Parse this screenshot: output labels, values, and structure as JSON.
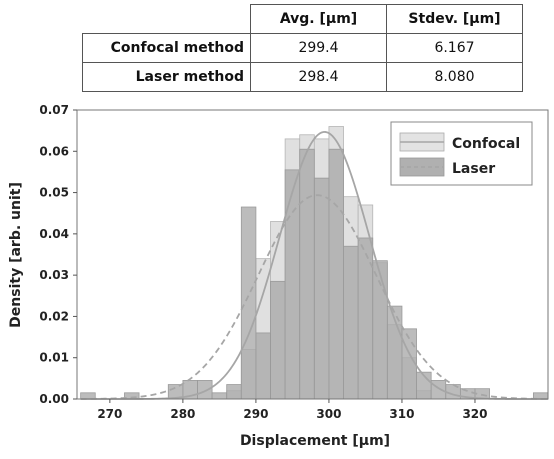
{
  "table": {
    "headers": [
      "",
      "Avg.  [μm]",
      "Stdev.  [μm]"
    ],
    "rows": [
      {
        "label": "Confocal method",
        "avg": "299.4",
        "stdev": "6.167"
      },
      {
        "label": "Laser method",
        "avg": "298.4",
        "stdev": "8.080"
      }
    ]
  },
  "chart_data": {
    "type": "histogram",
    "xlabel": "Displacement [μm]",
    "ylabel": "Density [arb. unit]",
    "xlim": [
      265.5,
      330
    ],
    "ylim": [
      0,
      0.07
    ],
    "xticks": [
      270,
      280,
      290,
      300,
      310,
      320
    ],
    "yticks": [
      0.0,
      0.01,
      0.02,
      0.03,
      0.04,
      0.05,
      0.06,
      0.07
    ],
    "ytick_labels": [
      "0.00",
      "0.01",
      "0.02",
      "0.03",
      "0.04",
      "0.05",
      "0.06",
      "0.07"
    ],
    "legend": {
      "placement": "top-right",
      "entries": [
        "Confocal",
        "Laser"
      ]
    },
    "series": [
      {
        "name": "Confocal",
        "kind": "histogram + normal fit (solid)",
        "color": "#d9d9d9",
        "bins": [
          [
            286,
            288,
            0.002
          ],
          [
            288,
            290,
            0.012
          ],
          [
            290,
            292,
            0.034
          ],
          [
            292,
            294,
            0.043
          ],
          [
            294,
            296,
            0.063
          ],
          [
            296,
            298,
            0.064
          ],
          [
            298,
            300,
            0.063
          ],
          [
            300,
            302,
            0.066
          ],
          [
            302,
            304,
            0.049
          ],
          [
            304,
            306,
            0.047
          ],
          [
            306,
            308,
            0.033
          ],
          [
            308,
            310,
            0.018
          ],
          [
            310,
            312,
            0.01
          ],
          [
            312,
            314,
            0.002
          ]
        ],
        "fit": {
          "mean": 299.4,
          "stdev": 6.167,
          "line": "solid",
          "color": "#a6a6a6"
        }
      },
      {
        "name": "Laser",
        "kind": "histogram + normal fit (dashed)",
        "color": "#b0b0b0",
        "bins": [
          [
            266,
            268,
            0.0015
          ],
          [
            272,
            274,
            0.0015
          ],
          [
            278,
            280,
            0.0035
          ],
          [
            280,
            282,
            0.0045
          ],
          [
            282,
            284,
            0.0045
          ],
          [
            284,
            286,
            0.0015
          ],
          [
            286,
            288,
            0.0035
          ],
          [
            288,
            290,
            0.0465
          ],
          [
            290,
            292,
            0.016
          ],
          [
            292,
            294,
            0.0285
          ],
          [
            294,
            296,
            0.0555
          ],
          [
            296,
            298,
            0.0605
          ],
          [
            298,
            300,
            0.0535
          ],
          [
            300,
            302,
            0.0605
          ],
          [
            302,
            304,
            0.037
          ],
          [
            304,
            306,
            0.039
          ],
          [
            306,
            308,
            0.0335
          ],
          [
            308,
            310,
            0.0225
          ],
          [
            310,
            312,
            0.017
          ],
          [
            312,
            314,
            0.0065
          ],
          [
            314,
            316,
            0.0045
          ],
          [
            316,
            318,
            0.0035
          ],
          [
            318,
            320,
            0.0025
          ],
          [
            320,
            322,
            0.0025
          ],
          [
            328,
            330,
            0.0015
          ]
        ],
        "fit": {
          "mean": 298.4,
          "stdev": 8.08,
          "line": "dashed",
          "color": "#a6a6a6"
        }
      }
    ]
  }
}
